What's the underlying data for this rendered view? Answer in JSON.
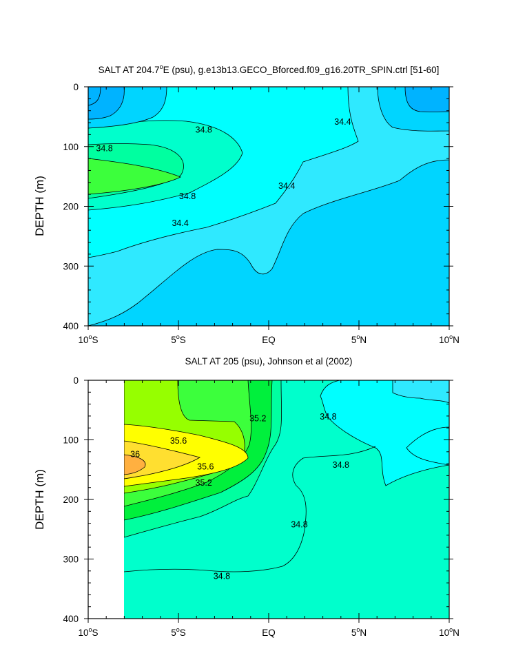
{
  "chart_data": [
    {
      "type": "contour",
      "title": "SALT AT 204.7°E (psu), g.e13b13.GECO_Bforced.f09_g16.20TR_SPIN.ctrl [51-60]",
      "title_parts": {
        "pre": "SALT AT 204.7",
        "sup": "o",
        "post": "E (psu), g.e13b13.GECO_Bforced.f09_g16.20TR_SPIN.ctrl [51-60]"
      },
      "ylabel": "DEPTH (m)",
      "xlabel": "",
      "xlim": [
        -10,
        10
      ],
      "ylim": [
        400,
        0
      ],
      "x_ticks": [
        -10,
        -5,
        0,
        5,
        10
      ],
      "y_ticks": [
        0,
        100,
        200,
        300,
        400
      ],
      "y_tick_labels": [
        "0",
        "100",
        "200",
        "300",
        "400"
      ],
      "contour_labels": [
        {
          "text": "34.8",
          "x": -3.6,
          "y": 72
        },
        {
          "text": "34.8",
          "x": -9.1,
          "y": 103
        },
        {
          "text": "34.4",
          "x": 4.1,
          "y": 59
        },
        {
          "text": "34.8",
          "x": -4.5,
          "y": 183
        },
        {
          "text": "34.4",
          "x": 1.0,
          "y": 166
        },
        {
          "text": "34.4",
          "x": -4.9,
          "y": 228
        }
      ]
    },
    {
      "type": "contour",
      "title": "SALT AT 205 (psu), Johnson et al (2002)",
      "ylabel": "DEPTH (m)",
      "xlabel": "",
      "xlim": [
        -10,
        10
      ],
      "ylim": [
        400,
        0
      ],
      "data_x_start": -8,
      "x_ticks": [
        -10,
        -5,
        0,
        5,
        10
      ],
      "y_ticks": [
        0,
        100,
        200,
        300,
        400
      ],
      "y_tick_labels": [
        "0",
        "100",
        "200",
        "300",
        "400"
      ],
      "contour_labels": [
        {
          "text": "35.2",
          "x": -0.6,
          "y": 64
        },
        {
          "text": "34.8",
          "x": 3.3,
          "y": 61
        },
        {
          "text": "35.6",
          "x": -5.0,
          "y": 102
        },
        {
          "text": "36",
          "x": -7.4,
          "y": 124
        },
        {
          "text": "35.6",
          "x": -3.5,
          "y": 145
        },
        {
          "text": "34.8",
          "x": 4.0,
          "y": 142
        },
        {
          "text": "35.2",
          "x": -3.6,
          "y": 172
        },
        {
          "text": "34.8",
          "x": 1.7,
          "y": 242
        },
        {
          "text": "34.8",
          "x": -2.6,
          "y": 329
        }
      ]
    }
  ],
  "x_tick_labels": [
    {
      "num": "10",
      "sup": "o",
      "hemi": "S"
    },
    {
      "num": "5",
      "sup": "o",
      "hemi": "S"
    },
    {
      "num": "EQ",
      "sup": "",
      "hemi": ""
    },
    {
      "num": "5",
      "sup": "o",
      "hemi": "N"
    },
    {
      "num": "10",
      "sup": "o",
      "hemi": "N"
    }
  ],
  "colors": {
    "s34_0": "#00b3ff",
    "s34_2": "#00d5ff",
    "s34_6": "#00ffff",
    "s34_6b": "#2fe9ff",
    "s34_8": "#00ffcc",
    "s35_0": "#00ffa0",
    "s35_2": "#00f03c",
    "s35_4": "#3cff3c",
    "s35_6": "#96ff00",
    "s35_8": "#ffff00",
    "s36_0": "#ffdf30",
    "s36_2": "#ffb040"
  }
}
